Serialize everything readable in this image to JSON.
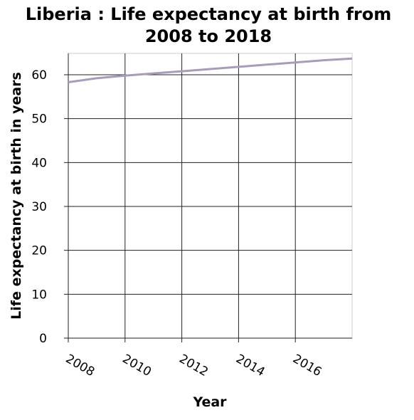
{
  "chart_data": {
    "type": "line",
    "title_line1": "Liberia : Life expectancy at birth from",
    "title_line2": "2008 to 2018",
    "xlabel": "Year",
    "ylabel": "Life expectancy at birth in years",
    "x_ticks": [
      "2008",
      "2010",
      "2012",
      "2014",
      "2016"
    ],
    "y_ticks": [
      "0",
      "10",
      "20",
      "30",
      "40",
      "50",
      "60"
    ],
    "xlim": [
      2008,
      2018
    ],
    "ylim": [
      0,
      65
    ],
    "grid": true,
    "series": [
      {
        "color": "#a99bbd",
        "x": [
          2008,
          2009,
          2010,
          2011,
          2012,
          2013,
          2014,
          2015,
          2016,
          2017,
          2018
        ],
        "y": [
          58.3,
          59.2,
          59.8,
          60.3,
          60.8,
          61.3,
          61.8,
          62.3,
          62.8,
          63.3,
          63.7
        ]
      }
    ]
  }
}
